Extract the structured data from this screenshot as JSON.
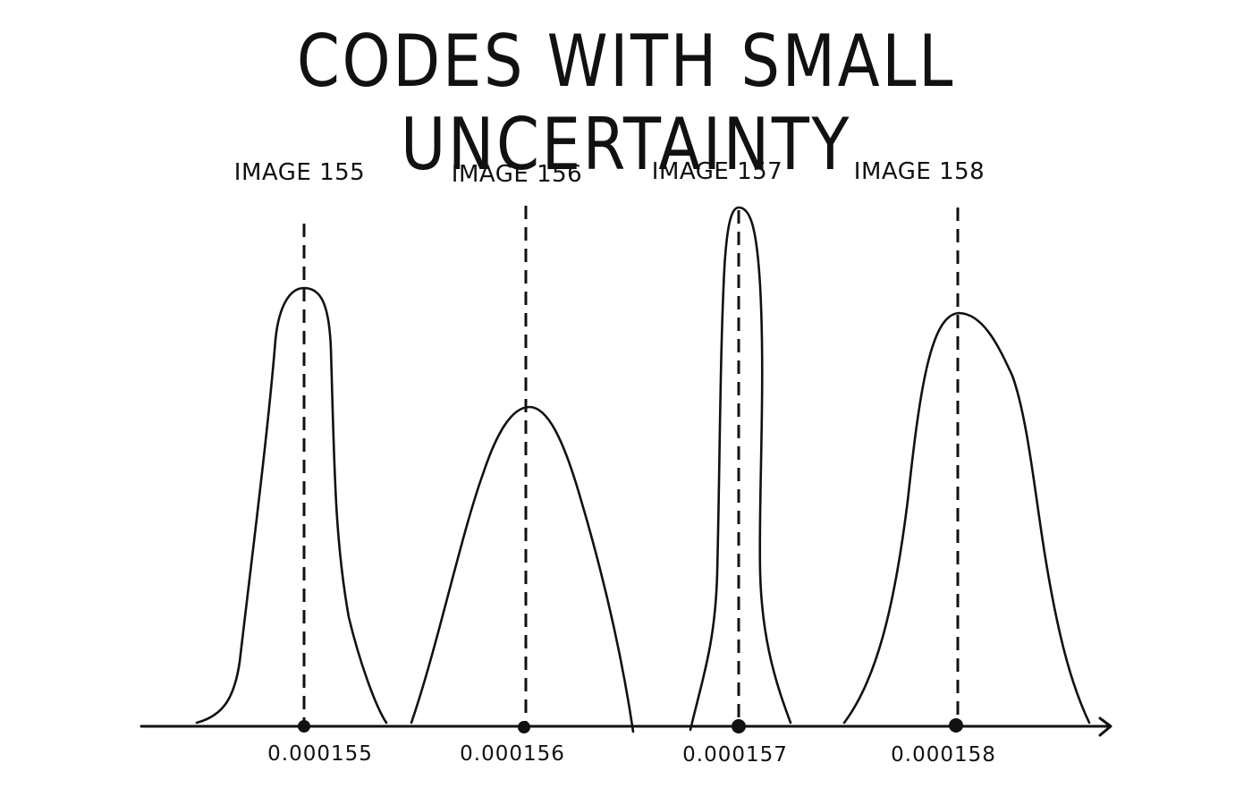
{
  "title": "CODES WITH SMALL UNCERTAINTY",
  "distributions": [
    {
      "image_label": "IMAGE 155",
      "code_value": "0.000155",
      "relative_peak": 0.8,
      "relative_width": "medium-narrow"
    },
    {
      "image_label": "IMAGE 156",
      "code_value": "0.000156",
      "relative_peak": 0.62,
      "relative_width": "wide"
    },
    {
      "image_label": "IMAGE 157",
      "code_value": "0.000157",
      "relative_peak": 1.0,
      "relative_width": "very-narrow"
    },
    {
      "image_label": "IMAGE 158",
      "code_value": "0.000158",
      "relative_peak": 0.79,
      "relative_width": "wide"
    }
  ],
  "colors": {
    "ink": "#111111",
    "background": "#ffffff"
  }
}
